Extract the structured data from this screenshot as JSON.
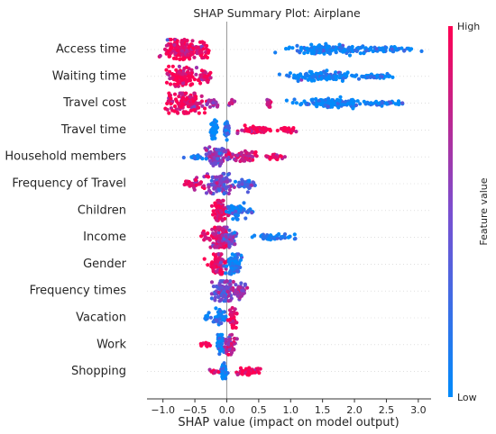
{
  "chart_data": {
    "type": "scatter",
    "title": "SHAP Summary Plot: Airplane",
    "xlabel": "SHAP value (impact on model output)",
    "xlim": [
      -1.25,
      3.2
    ],
    "x_ticks": [
      -1.0,
      -0.5,
      0.0,
      0.5,
      1.0,
      1.5,
      2.0,
      2.5,
      3.0
    ],
    "x_tick_labels": [
      "−1.0",
      "−0.5",
      "0.0",
      "0.5",
      "1.0",
      "1.5",
      "2.0",
      "2.5",
      "3.0"
    ],
    "colorbar": {
      "label": "Feature value",
      "high_label": "High",
      "low_label": "Low",
      "high_color": "#ff0052",
      "low_color": "#008bfb"
    },
    "features": [
      {
        "name": "Access time",
        "clusters": [
          {
            "c": -0.72,
            "w": 0.26,
            "h": 0.9,
            "n": 150,
            "v": 0.95
          },
          {
            "c": -0.4,
            "w": 0.14,
            "h": 0.5,
            "n": 50,
            "v": 0.9
          },
          {
            "c": 1.55,
            "w": 0.55,
            "h": 0.3,
            "n": 150,
            "v": 0.05
          },
          {
            "c": 2.45,
            "w": 0.4,
            "h": 0.18,
            "n": 70,
            "v": 0.05
          }
        ]
      },
      {
        "name": "Waiting time",
        "clusters": [
          {
            "c": -0.7,
            "w": 0.2,
            "h": 0.8,
            "n": 120,
            "v": 0.95
          },
          {
            "c": -0.35,
            "w": 0.12,
            "h": 0.45,
            "n": 40,
            "v": 0.9
          },
          {
            "c": 1.5,
            "w": 0.55,
            "h": 0.3,
            "n": 130,
            "v": 0.05
          },
          {
            "c": 2.35,
            "w": 0.3,
            "h": 0.15,
            "n": 50,
            "v": 0.05
          }
        ]
      },
      {
        "name": "Travel cost",
        "clusters": [
          {
            "c": -0.62,
            "w": 0.28,
            "h": 0.9,
            "n": 150,
            "v": 0.95
          },
          {
            "c": -0.2,
            "w": 0.1,
            "h": 0.3,
            "n": 20,
            "v": 0.6
          },
          {
            "c": 0.08,
            "w": 0.05,
            "h": 0.25,
            "n": 8,
            "v": 0.7
          },
          {
            "c": 0.65,
            "w": 0.07,
            "h": 0.3,
            "n": 15,
            "v": 0.7
          },
          {
            "c": 1.6,
            "w": 0.5,
            "h": 0.3,
            "n": 130,
            "v": 0.05
          },
          {
            "c": 2.5,
            "w": 0.3,
            "h": 0.15,
            "n": 40,
            "v": 0.05
          }
        ]
      },
      {
        "name": "Travel time",
        "clusters": [
          {
            "c": -0.2,
            "w": 0.05,
            "h": 0.5,
            "n": 50,
            "v": 0.05
          },
          {
            "c": 0.0,
            "w": 0.04,
            "h": 0.5,
            "n": 40,
            "v": 0.1
          },
          {
            "c": 0.45,
            "w": 0.28,
            "h": 0.25,
            "n": 60,
            "v": 0.95
          },
          {
            "c": 0.95,
            "w": 0.15,
            "h": 0.15,
            "n": 20,
            "v": 0.95
          }
        ]
      },
      {
        "name": "Household members",
        "clusters": [
          {
            "c": -0.15,
            "w": 0.2,
            "h": 0.75,
            "n": 100,
            "v": 0.5
          },
          {
            "c": -0.5,
            "w": 0.15,
            "h": 0.2,
            "n": 20,
            "v": 0.1
          },
          {
            "c": 0.3,
            "w": 0.2,
            "h": 0.35,
            "n": 60,
            "v": 0.85
          },
          {
            "c": 0.75,
            "w": 0.15,
            "h": 0.2,
            "n": 25,
            "v": 0.9
          }
        ]
      },
      {
        "name": "Frequency of Travel",
        "clusters": [
          {
            "c": -0.1,
            "w": 0.2,
            "h": 0.85,
            "n": 120,
            "v": 0.45
          },
          {
            "c": -0.5,
            "w": 0.15,
            "h": 0.35,
            "n": 35,
            "v": 0.9
          },
          {
            "c": 0.3,
            "w": 0.15,
            "h": 0.4,
            "n": 40,
            "v": 0.3
          }
        ]
      },
      {
        "name": "Children",
        "clusters": [
          {
            "c": -0.1,
            "w": 0.12,
            "h": 0.75,
            "n": 90,
            "v": 0.9
          },
          {
            "c": 0.15,
            "w": 0.15,
            "h": 0.5,
            "n": 60,
            "v": 0.1
          },
          {
            "c": 0.38,
            "w": 0.06,
            "h": 0.15,
            "n": 6,
            "v": 0.1
          }
        ]
      },
      {
        "name": "Income",
        "clusters": [
          {
            "c": -0.1,
            "w": 0.15,
            "h": 0.85,
            "n": 110,
            "v": 0.8
          },
          {
            "c": 0.05,
            "w": 0.1,
            "h": 0.6,
            "n": 50,
            "v": 0.4
          },
          {
            "c": 0.75,
            "w": 0.35,
            "h": 0.18,
            "n": 50,
            "v": 0.05
          },
          {
            "c": -0.35,
            "w": 0.06,
            "h": 0.3,
            "n": 10,
            "v": 0.9
          }
        ]
      },
      {
        "name": "Gender",
        "clusters": [
          {
            "c": -0.15,
            "w": 0.12,
            "h": 0.8,
            "n": 90,
            "v": 0.95
          },
          {
            "c": 0.12,
            "w": 0.12,
            "h": 0.75,
            "n": 80,
            "v": 0.05
          }
        ]
      },
      {
        "name": "Frequency times",
        "clusters": [
          {
            "c": -0.05,
            "w": 0.15,
            "h": 0.8,
            "n": 100,
            "v": 0.45
          },
          {
            "c": 0.2,
            "w": 0.15,
            "h": 0.5,
            "n": 50,
            "v": 0.6
          }
        ]
      },
      {
        "name": "Vacation",
        "clusters": [
          {
            "c": -0.1,
            "w": 0.1,
            "h": 0.5,
            "n": 50,
            "v": 0.05
          },
          {
            "c": 0.1,
            "w": 0.06,
            "h": 0.7,
            "n": 50,
            "v": 0.95
          },
          {
            "c": -0.3,
            "w": 0.05,
            "h": 0.2,
            "n": 8,
            "v": 0.05
          }
        ]
      },
      {
        "name": "Work",
        "clusters": [
          {
            "c": -0.1,
            "w": 0.06,
            "h": 0.75,
            "n": 70,
            "v": 0.05
          },
          {
            "c": 0.05,
            "w": 0.08,
            "h": 0.6,
            "n": 50,
            "v": 0.7
          },
          {
            "c": -0.35,
            "w": 0.1,
            "h": 0.15,
            "n": 15,
            "v": 0.95
          }
        ]
      },
      {
        "name": "Shopping",
        "clusters": [
          {
            "c": -0.05,
            "w": 0.04,
            "h": 0.6,
            "n": 50,
            "v": 0.05
          },
          {
            "c": 0.35,
            "w": 0.2,
            "h": 0.3,
            "n": 50,
            "v": 0.95
          },
          {
            "c": -0.2,
            "w": 0.06,
            "h": 0.15,
            "n": 8,
            "v": 0.95
          }
        ]
      }
    ]
  }
}
